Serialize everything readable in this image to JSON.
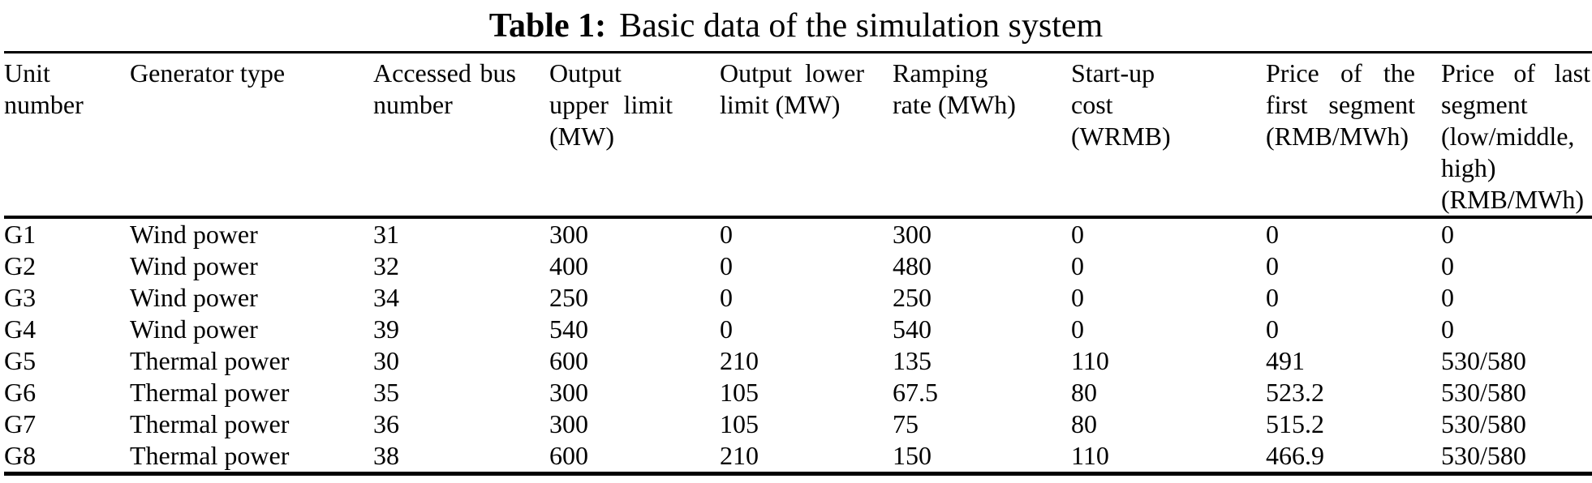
{
  "title": {
    "label": "Table 1:",
    "text": "Basic data of the simulation system"
  },
  "table": {
    "columns": [
      {
        "key": "unit-number",
        "label": "Unit number",
        "lines": [
          "Unit",
          "number"
        ]
      },
      {
        "key": "generator-type",
        "label": "Generator type",
        "lines": [
          "Generator type"
        ]
      },
      {
        "key": "accessed-bus",
        "label": "Accessed bus number",
        "lines": [
          "Accessed bus",
          "number"
        ]
      },
      {
        "key": "output-upper-limit",
        "label": "Output upper limit (MW)",
        "lines": [
          "Output",
          "upper limit",
          "(MW)"
        ]
      },
      {
        "key": "output-lower-limit",
        "label": "Output lower limit (MW)",
        "lines": [
          "Output lower",
          "limit (MW)"
        ]
      },
      {
        "key": "ramping-rate",
        "label": "Ramping rate (MWh)",
        "lines": [
          "Ramping",
          "rate (MWh)"
        ]
      },
      {
        "key": "startup-cost",
        "label": "Start-up cost (WRMB)",
        "lines": [
          "Start-up",
          "cost (WRMB)"
        ]
      },
      {
        "key": "price-first-segment",
        "label": "Price of the first segment (RMB/MWh)",
        "lines": [
          "Price of the",
          "first segment",
          "(RMB/MWh)"
        ]
      },
      {
        "key": "price-last-segment",
        "label": "Price of last segment (low/middle, high) (RMB/MWh)",
        "lines": [
          "Price of last",
          "segment",
          "(low/middle,",
          "high)",
          "(RMB/MWh)"
        ]
      }
    ],
    "rows": [
      [
        "G1",
        "Wind power",
        "31",
        "300",
        "0",
        "300",
        "0",
        "0",
        "0"
      ],
      [
        "G2",
        "Wind power",
        "32",
        "400",
        "0",
        "480",
        "0",
        "0",
        "0"
      ],
      [
        "G3",
        "Wind power",
        "34",
        "250",
        "0",
        "250",
        "0",
        "0",
        "0"
      ],
      [
        "G4",
        "Wind power",
        "39",
        "540",
        "0",
        "540",
        "0",
        "0",
        "0"
      ],
      [
        "G5",
        "Thermal power",
        "30",
        "600",
        "210",
        "135",
        "110",
        "491",
        "530/580"
      ],
      [
        "G6",
        "Thermal power",
        "35",
        "300",
        "105",
        "67.5",
        "80",
        "523.2",
        "530/580"
      ],
      [
        "G7",
        "Thermal power",
        "36",
        "300",
        "105",
        "75",
        "80",
        "515.2",
        "530/580"
      ],
      [
        "G8",
        "Thermal power",
        "38",
        "600",
        "210",
        "150",
        "110",
        "466.9",
        "530/580"
      ]
    ]
  }
}
